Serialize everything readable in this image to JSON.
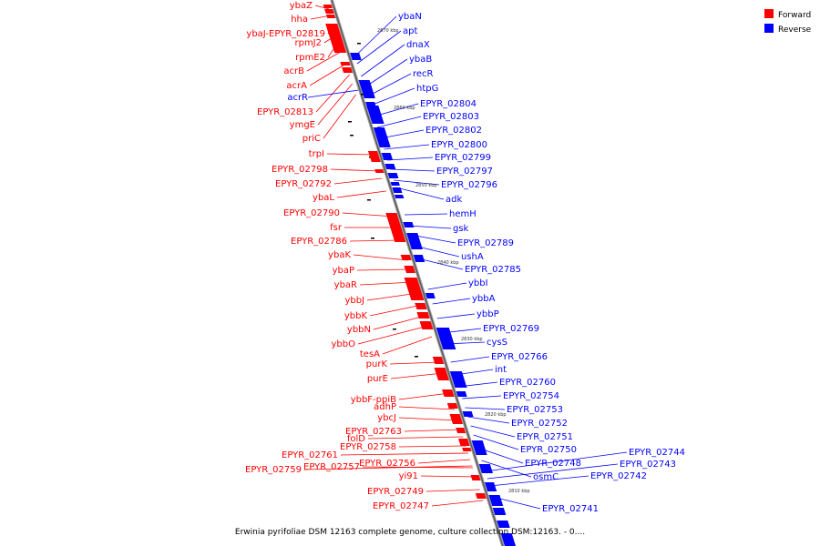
{
  "caption": "Erwinia pyrifoliae DSM 12163 complete genome, culture collection DSM:12163. - 0....",
  "legend": [
    {
      "label": "Forward",
      "color": "#ff0000"
    },
    {
      "label": "Reverse",
      "color": "#0000ff"
    }
  ],
  "colors": {
    "forward": "#ff0000",
    "reverse": "#0000ff",
    "axis": "#888888"
  },
  "ticks": [
    "2870 kbp",
    "2860 kbp",
    "2850 kbp",
    "2840 kbp",
    "2830 kbp",
    "2820 kbp",
    "2810 kbp"
  ],
  "forward_genes": [
    "ybaZ",
    "hha",
    "ybaJ-EPYR_02819",
    "rpmJ2",
    "rpmE2",
    "acrB",
    "acrA",
    "EPYR_02813",
    "ymgE",
    "priC",
    "trpI",
    "EPYR_02798",
    "EPYR_02792",
    "ybaL",
    "EPYR_02790",
    "fsr",
    "EPYR_02786",
    "ybaK",
    "ybaP",
    "ybaR",
    "ybbJ",
    "ybbK",
    "ybbN",
    "ybbO",
    "tesA",
    "purK",
    "purE",
    "ybbF-ppiB",
    "adhP",
    "ybcJ",
    "EPYR_02763",
    "folD",
    "EPYR_02758",
    "EPYR_02761",
    "EPYR_02759",
    "EPYR_02757",
    "EPYR_02756",
    "yi91",
    "EPYR_02749",
    "EPYR_02747"
  ],
  "reverse_genes": [
    "acrR",
    "ybaN",
    "apt",
    "dnaX",
    "ybaB",
    "recR",
    "htpG",
    "EPYR_02804",
    "EPYR_02803",
    "EPYR_02802",
    "EPYR_02800",
    "EPYR_02799",
    "EPYR_02797",
    "EPYR_02796",
    "adk",
    "hemH",
    "gsk",
    "EPYR_02789",
    "ushA",
    "EPYR_02785",
    "ybbI",
    "ybbA",
    "ybbP",
    "EPYR_02769",
    "cysS",
    "EPYR_02766",
    "int",
    "EPYR_02760",
    "EPYR_02754",
    "EPYR_02753",
    "EPYR_02752",
    "EPYR_02751",
    "EPYR_02750",
    "EPYR_02748",
    "osmC",
    "EPYR_02744",
    "EPYR_02743",
    "EPYR_02742",
    "EPYR_02741"
  ]
}
